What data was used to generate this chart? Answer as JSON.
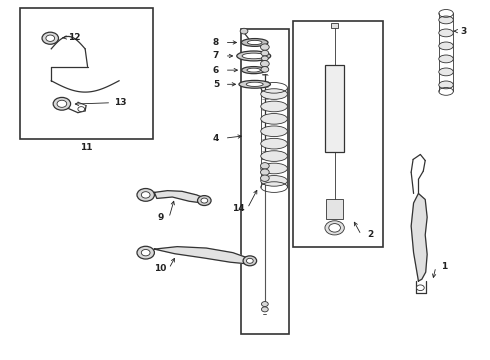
{
  "bg_color": "#ffffff",
  "line_color": "#333333",
  "label_color": "#222222",
  "fig_width": 4.9,
  "fig_height": 3.6,
  "dpi": 100,
  "font_size": 6.5,
  "font_weight": "bold"
}
